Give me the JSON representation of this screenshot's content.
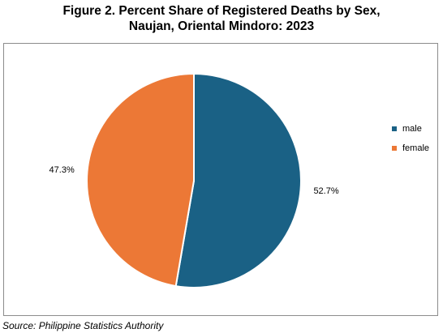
{
  "chart_data": {
    "type": "pie",
    "title_lines": [
      "Figure 2. Percent Share of Registered Deaths by Sex,",
      "Naujan, Oriental Mindoro: 2023"
    ],
    "categories": [
      "male",
      "female"
    ],
    "values": [
      52.7,
      47.3
    ],
    "data_labels": [
      "52.7%",
      "47.3%"
    ],
    "colors": [
      "#1a6185",
      "#ec7836"
    ],
    "legend_position": "right"
  },
  "source": "Source: Philippine Statistics Authority"
}
